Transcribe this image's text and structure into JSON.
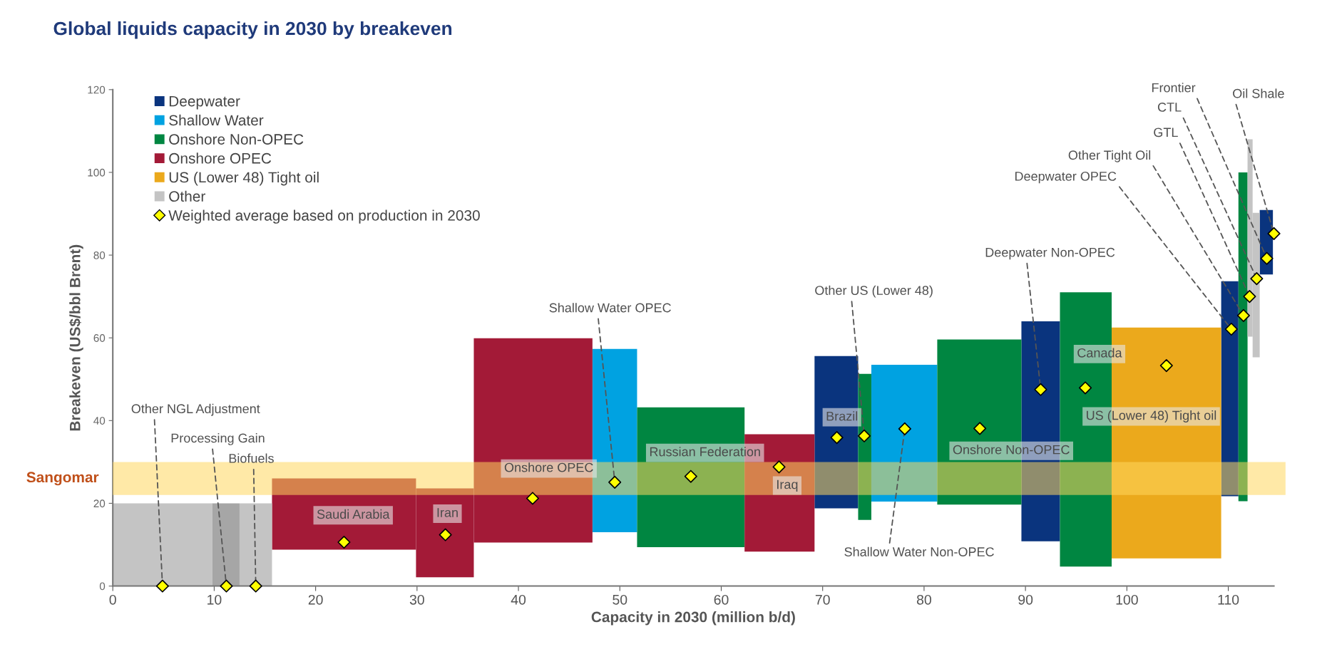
{
  "chart_data": {
    "type": "histogram",
    "title": "Global liquids capacity in 2030 by breakeven",
    "xlabel": "Capacity in 2030 (million b/d)",
    "ylabel": "Breakeven (US$/bbl Brent)",
    "xlim": [
      0,
      114.5
    ],
    "ylim": [
      0,
      120
    ],
    "xticks": [
      0,
      10,
      20,
      30,
      40,
      50,
      60,
      70,
      80,
      90,
      100,
      110
    ],
    "yticks": [
      0,
      20,
      40,
      60,
      80,
      100,
      120
    ],
    "legend": "top left",
    "bins": [
      0,
      9.8,
      12.5,
      15.7,
      29.9,
      35.6,
      47.3,
      51.7,
      62.3,
      69.2,
      73.5,
      74.8,
      81.3,
      89.6,
      93.4,
      98.5,
      109.3,
      111.0,
      111.9,
      112.4,
      113.1,
      114.4
    ],
    "series": [
      {
        "name": "Deepwater",
        "color": "#0a347e",
        "values": [
          null,
          null,
          null,
          null,
          null,
          null,
          null,
          null,
          null,
          36.8,
          null,
          null,
          null,
          53.2,
          null,
          null,
          52.0,
          null,
          null,
          null,
          15.6
        ],
        "base": [
          null,
          null,
          null,
          null,
          null,
          null,
          null,
          null,
          null,
          18.8,
          null,
          null,
          null,
          10.8,
          null,
          null,
          21.7,
          null,
          null,
          null,
          75.3
        ]
      },
      {
        "name": "Shallow Water",
        "color": "#00a2e1",
        "values": [
          null,
          null,
          null,
          null,
          null,
          null,
          44.3,
          null,
          null,
          null,
          null,
          33.1,
          null,
          null,
          null,
          null,
          null,
          null,
          null,
          null,
          null
        ],
        "base": [
          null,
          null,
          null,
          null,
          null,
          null,
          13.0,
          null,
          null,
          null,
          null,
          20.4,
          null,
          null,
          null,
          null,
          null,
          null,
          null,
          null,
          null
        ]
      },
      {
        "name": "Onshore Non-OPEC",
        "color": "#008641",
        "values": [
          null,
          null,
          null,
          null,
          null,
          null,
          null,
          33.8,
          null,
          null,
          35.3,
          null,
          39.9,
          null,
          66.3,
          null,
          null,
          79.5,
          null,
          null,
          null
        ],
        "base": [
          null,
          null,
          null,
          null,
          null,
          null,
          null,
          9.4,
          null,
          null,
          16.0,
          null,
          19.7,
          null,
          4.7,
          null,
          null,
          20.5,
          null,
          null,
          null
        ]
      },
      {
        "name": "Onshore OPEC",
        "color": "#a31a37",
        "values": [
          null,
          null,
          null,
          17.2,
          21.5,
          49.4,
          null,
          null,
          28.4,
          null,
          null,
          null,
          null,
          null,
          null,
          null,
          null,
          null,
          null,
          null,
          null
        ],
        "base": [
          null,
          null,
          null,
          8.8,
          2.1,
          10.5,
          null,
          null,
          8.3,
          null,
          null,
          null,
          null,
          null,
          null,
          null,
          null,
          null,
          null,
          null,
          null
        ]
      },
      {
        "name": "US (Lower 48) Tight oil",
        "color": "#eba91c",
        "values": [
          null,
          null,
          null,
          null,
          null,
          null,
          null,
          null,
          null,
          null,
          null,
          null,
          null,
          null,
          null,
          55.8,
          null,
          null,
          null,
          null,
          null
        ],
        "base": [
          null,
          null,
          null,
          null,
          null,
          null,
          null,
          null,
          null,
          null,
          null,
          null,
          null,
          null,
          null,
          6.7,
          null,
          null,
          null,
          null,
          null
        ]
      },
      {
        "name": "Other",
        "color": "#c4c4c4",
        "colors": [
          "#c4c4c4",
          "#a6a6a6",
          "#c4c4c4",
          null,
          null,
          null,
          null,
          null,
          null,
          null,
          null,
          null,
          null,
          null,
          null,
          null,
          null,
          null,
          "#c4c4c4",
          "#c4c4c4",
          null
        ],
        "values": [
          20,
          20,
          20,
          null,
          null,
          null,
          null,
          null,
          null,
          null,
          null,
          null,
          null,
          null,
          null,
          null,
          null,
          null,
          47.7,
          34.9,
          null
        ],
        "base": [
          0,
          0,
          0,
          null,
          null,
          null,
          null,
          null,
          null,
          null,
          null,
          null,
          null,
          null,
          null,
          null,
          null,
          null,
          60.3,
          55.3,
          null
        ]
      },
      {
        "type": "scatter",
        "name": "Weighted average based on production in 2030",
        "color": "#ffff00",
        "marker": "diamond",
        "x": [
          4.9,
          11.2,
          14.1,
          22.8,
          32.8,
          41.4,
          49.5,
          57.0,
          65.7,
          71.4,
          74.1,
          78.1,
          85.5,
          91.5,
          95.9,
          103.9,
          110.3,
          111.5,
          112.1,
          112.8,
          113.8,
          114.5
        ],
        "values": [
          0,
          0,
          0,
          10.6,
          12.4,
          21.2,
          25.1,
          26.5,
          28.8,
          35.9,
          36.3,
          38.0,
          38.1,
          47.5,
          47.9,
          53.3,
          62.1,
          65.4,
          70.0,
          74.3,
          79.2,
          85.2
        ]
      }
    ],
    "bands": [
      {
        "axis": "y",
        "from": 22,
        "to": 30,
        "label": "Sangomar",
        "color": "#ffd75e"
      }
    ],
    "annotations": [
      {
        "text": "Other NGL Adjustment",
        "x": 4.9,
        "y": 0
      },
      {
        "text": "Processing Gain",
        "x": 11.2,
        "y": 0
      },
      {
        "text": "Biofuels",
        "x": 14.1,
        "y": 0
      },
      {
        "text": "Shallow Water OPEC",
        "x": 49.5,
        "y": 25.1
      },
      {
        "text": "Other US (Lower 48)",
        "x": 74.1,
        "y": 36.3
      },
      {
        "text": "Shallow Water Non-OPEC",
        "x": 78.1,
        "y": 38.0
      },
      {
        "text": "Deepwater Non-OPEC",
        "x": 91.5,
        "y": 47.5
      },
      {
        "text": "Deepwater OPEC",
        "x": 110.3,
        "y": 62.1
      },
      {
        "text": "Other Tight Oil",
        "x": 111.5,
        "y": 65.4
      },
      {
        "text": "GTL",
        "x": 112.1,
        "y": 70.0
      },
      {
        "text": "CTL",
        "x": 112.8,
        "y": 74.3
      },
      {
        "text": "Frontier",
        "x": 113.8,
        "y": 79.2
      },
      {
        "text": "Oil Shale",
        "x": 114.5,
        "y": 85.2
      },
      "Saudi Arabia",
      "Iran",
      "Onshore OPEC",
      "Russian Federation",
      "Iraq",
      "Brazil",
      "Onshore Non-OPEC",
      "Canada",
      "US (Lower 48) Tight oil"
    ]
  }
}
